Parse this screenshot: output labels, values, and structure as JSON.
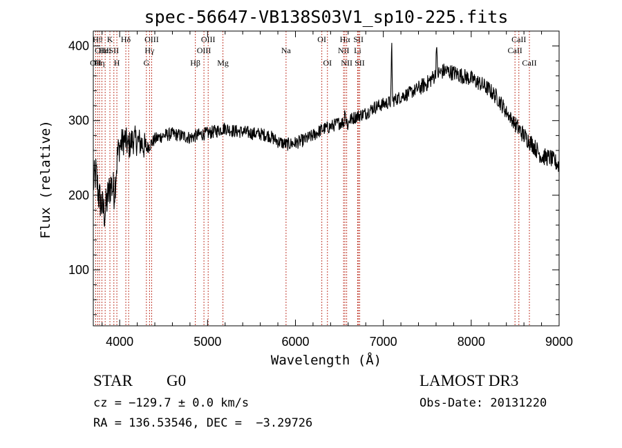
{
  "chart_data": {
    "type": "line",
    "title": "spec-56647-VB138S03V1_sp10-225.fits",
    "xlabel": "Wavelength (Å)",
    "ylabel": "Flux (relative)",
    "xlim": [
      3700,
      9000
    ],
    "ylim": [
      25,
      420
    ],
    "xticks": [
      4000,
      5000,
      6000,
      7000,
      8000,
      9000
    ],
    "yticks": [
      100,
      200,
      300,
      400
    ],
    "spectrum_anchors": [
      [
        3700,
        215
      ],
      [
        3730,
        230
      ],
      [
        3760,
        200
      ],
      [
        3800,
        185
      ],
      [
        3830,
        175
      ],
      [
        3860,
        195
      ],
      [
        3900,
        215
      ],
      [
        3940,
        205
      ],
      [
        3980,
        260
      ],
      [
        4020,
        270
      ],
      [
        4060,
        275
      ],
      [
        4100,
        265
      ],
      [
        4150,
        275
      ],
      [
        4200,
        272
      ],
      [
        4250,
        270
      ],
      [
        4300,
        262
      ],
      [
        4350,
        268
      ],
      [
        4400,
        275
      ],
      [
        4500,
        280
      ],
      [
        4600,
        282
      ],
      [
        4700,
        280
      ],
      [
        4800,
        277
      ],
      [
        4900,
        281
      ],
      [
        5000,
        283
      ],
      [
        5100,
        286
      ],
      [
        5200,
        290
      ],
      [
        5300,
        286
      ],
      [
        5400,
        285
      ],
      [
        5500,
        283
      ],
      [
        5600,
        282
      ],
      [
        5700,
        280
      ],
      [
        5800,
        272
      ],
      [
        5900,
        268
      ],
      [
        6000,
        270
      ],
      [
        6100,
        274
      ],
      [
        6200,
        280
      ],
      [
        6300,
        288
      ],
      [
        6400,
        292
      ],
      [
        6500,
        297
      ],
      [
        6560,
        298
      ],
      [
        6600,
        300
      ],
      [
        6700,
        306
      ],
      [
        6800,
        310
      ],
      [
        6900,
        318
      ],
      [
        7000,
        322
      ],
      [
        7100,
        326
      ],
      [
        7200,
        332
      ],
      [
        7300,
        337
      ],
      [
        7400,
        343
      ],
      [
        7500,
        350
      ],
      [
        7600,
        362
      ],
      [
        7700,
        367
      ],
      [
        7800,
        364
      ],
      [
        7900,
        360
      ],
      [
        8000,
        356
      ],
      [
        8100,
        350
      ],
      [
        8200,
        342
      ],
      [
        8300,
        330
      ],
      [
        8400,
        312
      ],
      [
        8500,
        295
      ],
      [
        8600,
        280
      ],
      [
        8700,
        268
      ],
      [
        8800,
        252
      ],
      [
        8900,
        250
      ],
      [
        9000,
        240
      ]
    ],
    "spikes": [
      {
        "x": 7095,
        "y": 410
      },
      {
        "x": 7605,
        "y": 412
      },
      {
        "x": 6565,
        "y": 322
      },
      {
        "x": 6598,
        "y": 290
      }
    ],
    "lines": [
      {
        "x": 3727,
        "label": "OII",
        "row": 3
      },
      {
        "x": 3750,
        "label": "Hθ",
        "row": 1
      },
      {
        "x": 3771,
        "label": "Hη",
        "row": 3
      },
      {
        "x": 3798,
        "label": "OIII",
        "row": 2
      },
      {
        "x": 3835,
        "label": "HeI",
        "row": 2
      },
      {
        "x": 3889,
        "label": "K",
        "row": 1
      },
      {
        "x": 3934,
        "label": "SII",
        "row": 2
      },
      {
        "x": 3968,
        "label": "H",
        "row": 3
      },
      {
        "x": 4070,
        "label": "Hδ",
        "row": 1
      },
      {
        "x": 4102,
        "label": "",
        "row": 0
      },
      {
        "x": 4304,
        "label": "G",
        "row": 3
      },
      {
        "x": 4340,
        "label": "Hγ",
        "row": 2
      },
      {
        "x": 4364,
        "label": "OIII",
        "row": 1
      },
      {
        "x": 4861,
        "label": "Hβ",
        "row": 3
      },
      {
        "x": 4959,
        "label": "OIII",
        "row": 2
      },
      {
        "x": 5007,
        "label": "OIII",
        "row": 1
      },
      {
        "x": 5175,
        "label": "Mg",
        "row": 3
      },
      {
        "x": 5893,
        "label": "Na",
        "row": 2
      },
      {
        "x": 6300,
        "label": "OI",
        "row": 1
      },
      {
        "x": 6364,
        "label": "OI",
        "row": 3
      },
      {
        "x": 6548,
        "label": "NII",
        "row": 2
      },
      {
        "x": 6563,
        "label": "Hα",
        "row": 1
      },
      {
        "x": 6583,
        "label": "NII",
        "row": 3
      },
      {
        "x": 6707,
        "label": "Li",
        "row": 2
      },
      {
        "x": 6717,
        "label": "SII",
        "row": 1
      },
      {
        "x": 6731,
        "label": "SII",
        "row": 3
      },
      {
        "x": 8498,
        "label": "CaII",
        "row": 2
      },
      {
        "x": 8542,
        "label": "CaII",
        "row": 1
      },
      {
        "x": 8662,
        "label": "CaII",
        "row": 3
      }
    ]
  },
  "info": {
    "class": "STAR",
    "subclass": "G0",
    "survey": "LAMOST DR3",
    "cz": "cz = −129.7 ± 0.0 km/s",
    "obs_date": "Obs-Date: 20131220",
    "radec": "RA = 136.53546, DEC =  −3.29726"
  }
}
